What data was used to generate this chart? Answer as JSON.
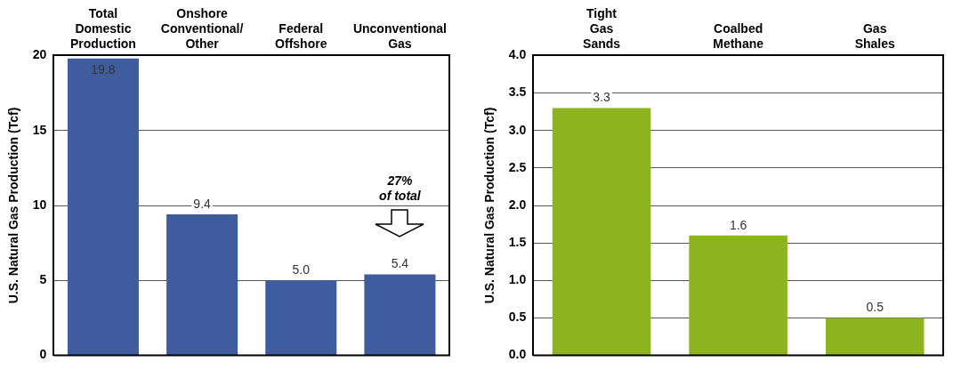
{
  "chart_data": [
    {
      "type": "bar",
      "ylabel": "U.S. Natural Gas Production (Tcf)",
      "categories": [
        "Total Domestic Production",
        "Onshore Conventional/ Other",
        "Federal Offshore",
        "Unconventional Gas"
      ],
      "values": [
        19.8,
        9.4,
        5.0,
        5.4
      ],
      "value_labels": [
        "19.8",
        "9.4",
        "5.0",
        "5.4"
      ],
      "color": "#3f5d9e",
      "ylim": [
        0,
        20
      ],
      "yticks": [
        0,
        5,
        10,
        15,
        20
      ],
      "grid": "y",
      "annotations": [
        "27% of total"
      ]
    },
    {
      "type": "bar",
      "ylabel": "U.S. Natural Gas Production (Tcf)",
      "categories": [
        "Tight Gas Sands",
        "Coalbed Methane",
        "Gas Shales"
      ],
      "values": [
        3.3,
        1.6,
        0.5
      ],
      "color": "#8db31e",
      "ylim": [
        0,
        4.0
      ],
      "yticks": [
        {
          "value": 0,
          "label": "0.0"
        },
        {
          "value": 0.5,
          "label": "0.5"
        },
        {
          "value": 1,
          "label": "1.0"
        },
        {
          "value": 1.5,
          "label": "1.5"
        },
        {
          "value": 2,
          "label": "2.0"
        },
        {
          "value": 2.5,
          "label": "2.5"
        },
        {
          "value": 3,
          "label": "3.0"
        },
        {
          "value": 3.5,
          "label": "3.5"
        },
        {
          "value": 4,
          "label": "4.0"
        }
      ],
      "grid": "y",
      "data_labels": true
    }
  ]
}
